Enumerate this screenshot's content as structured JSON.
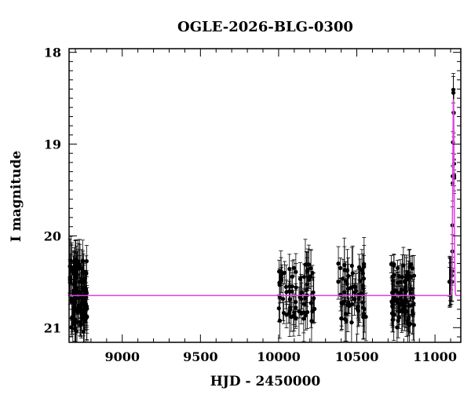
{
  "chart_data": {
    "type": "scatter",
    "title": "OGLE-2026-BLG-0300",
    "xlabel": "HJD - 2450000",
    "ylabel": "I magnitude",
    "xlim": [
      8660,
      11165
    ],
    "ylim": [
      21.16,
      17.96
    ],
    "y_inverted": true,
    "x_ticks": [
      9000,
      9500,
      10000,
      10500,
      11000
    ],
    "y_ticks": [
      18,
      19,
      20,
      21
    ],
    "grid": false,
    "colors": {
      "points": "#000000",
      "model": "#e040e0"
    },
    "model": {
      "baseline_mag": 20.65,
      "peak_time": 11118,
      "peak_mag": 18.45,
      "timescale": 6
    },
    "observing_seasons": [
      {
        "x_range": [
          8665,
          8775
        ],
        "mag_range": [
          20.25,
          21.05
        ],
        "n_points": 120
      },
      {
        "x_range": [
          10000,
          10230
        ],
        "mag_range": [
          20.3,
          20.95
        ],
        "n_points": 70
      },
      {
        "x_range": [
          10380,
          10560
        ],
        "mag_range": [
          20.3,
          20.95
        ],
        "n_points": 55
      },
      {
        "x_range": [
          10720,
          10870
        ],
        "mag_range": [
          20.3,
          21.0
        ],
        "n_points": 80
      },
      {
        "x_range": [
          11090,
          11125
        ],
        "mag_range": [
          18.35,
          20.5
        ],
        "n_points": 25
      }
    ]
  }
}
